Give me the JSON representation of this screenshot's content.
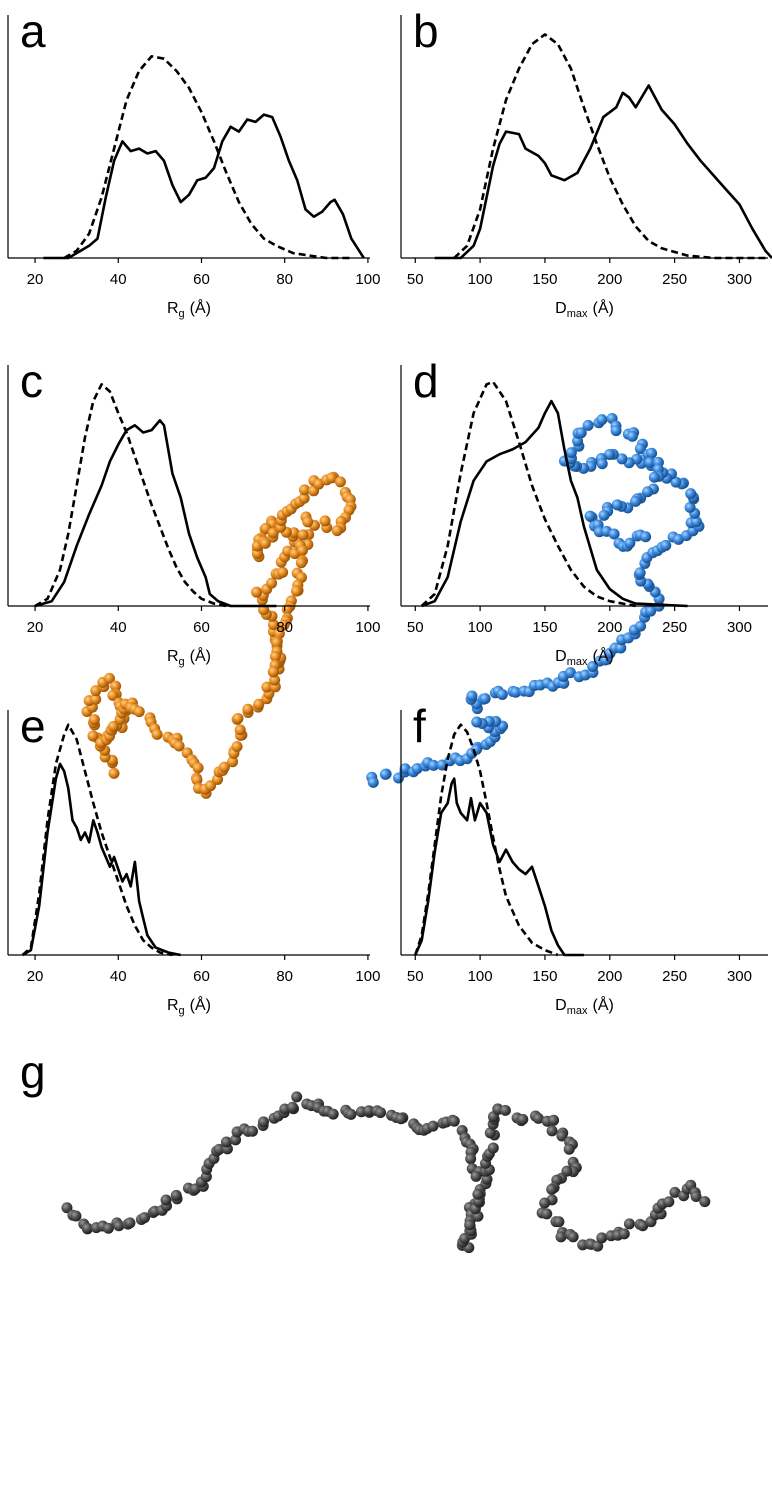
{
  "chart_data": [
    {
      "type": "line",
      "panel": "a",
      "xlabel_symbol": "R",
      "xlabel_subscript": "g",
      "xlabel_unit": "(Å)",
      "xlim": [
        13.5,
        100.5
      ],
      "xticks": [
        20,
        40,
        60,
        80,
        100
      ],
      "ylim": [
        0,
        100
      ],
      "series": [
        {
          "line_style": "solid",
          "color": "#000000",
          "x": [
            22,
            28,
            30,
            33,
            35,
            37,
            39,
            41,
            43,
            45,
            47,
            49,
            51,
            53,
            55,
            57,
            59,
            61,
            63,
            65,
            67,
            69,
            71,
            73,
            75,
            77,
            79,
            81,
            83,
            85,
            87,
            89,
            91,
            92,
            94,
            96,
            99
          ],
          "values": [
            0,
            0,
            2,
            5,
            8,
            25,
            40,
            48,
            44,
            45,
            43,
            44,
            40,
            30,
            23,
            26,
            32,
            33,
            37,
            48,
            54,
            52,
            57,
            56,
            59,
            58,
            50,
            40,
            32,
            20,
            17,
            19,
            23,
            24,
            18,
            8,
            0
          ]
        },
        {
          "line_style": "dashed",
          "color": "#000000",
          "x": [
            27,
            30,
            33,
            36,
            39,
            42,
            45,
            48,
            51,
            54,
            57,
            60,
            63,
            66,
            69,
            72,
            75,
            78,
            82,
            86,
            90,
            96
          ],
          "values": [
            0,
            3,
            10,
            25,
            45,
            65,
            77,
            83,
            82,
            77,
            70,
            60,
            48,
            35,
            23,
            14,
            8,
            5,
            2,
            1,
            0,
            0
          ]
        }
      ]
    },
    {
      "type": "line",
      "panel": "b",
      "xlabel_symbol": "D",
      "xlabel_subscript": "max",
      "xlabel_unit": "(Å)",
      "xlim": [
        39,
        322
      ],
      "xticks": [
        50,
        100,
        150,
        200,
        250,
        300
      ],
      "ylim": [
        0,
        100
      ],
      "series": [
        {
          "line_style": "solid",
          "color": "#000000",
          "x": [
            65,
            85,
            95,
            100,
            105,
            110,
            115,
            120,
            130,
            135,
            145,
            150,
            155,
            165,
            175,
            185,
            195,
            205,
            210,
            215,
            220,
            230,
            240,
            250,
            260,
            270,
            280,
            290,
            300,
            310,
            320,
            325
          ],
          "values": [
            0,
            0,
            5,
            12,
            25,
            38,
            47,
            52,
            51,
            45,
            42,
            39,
            34,
            32,
            35,
            45,
            58,
            62,
            68,
            66,
            62,
            71,
            61,
            55,
            47,
            40,
            34,
            28,
            22,
            12,
            3,
            0
          ]
        },
        {
          "line_style": "dashed",
          "color": "#000000",
          "x": [
            80,
            90,
            100,
            110,
            120,
            130,
            140,
            150,
            160,
            170,
            180,
            190,
            200,
            210,
            220,
            230,
            240,
            260,
            280,
            320
          ],
          "values": [
            0,
            5,
            20,
            45,
            65,
            78,
            88,
            92,
            88,
            78,
            62,
            47,
            33,
            22,
            13,
            7,
            4,
            1,
            0,
            0
          ]
        }
      ]
    },
    {
      "type": "line",
      "panel": "c",
      "xlabel_symbol": "R",
      "xlabel_subscript": "g",
      "xlabel_unit": "(Å)",
      "xlim": [
        13.5,
        100.5
      ],
      "xticks": [
        20,
        40,
        60,
        80,
        100
      ],
      "ylim": [
        0,
        100
      ],
      "series": [
        {
          "line_style": "solid",
          "color": "#000000",
          "x": [
            20,
            24,
            27,
            30,
            33,
            36,
            38,
            40,
            41,
            42,
            44,
            46,
            48,
            50,
            51,
            53,
            55,
            57,
            59,
            61,
            62,
            64,
            67,
            78
          ],
          "values": [
            0,
            2,
            10,
            25,
            38,
            50,
            60,
            67,
            70,
            73,
            75,
            72,
            73,
            77,
            75,
            55,
            45,
            30,
            20,
            12,
            5,
            2,
            0,
            0
          ]
        },
        {
          "line_style": "dashed",
          "color": "#000000",
          "x": [
            20,
            23,
            26,
            28,
            30,
            32,
            34,
            36,
            38,
            40,
            42,
            44,
            46,
            48,
            50,
            52,
            54,
            56,
            58,
            60,
            63,
            66
          ],
          "values": [
            0,
            3,
            15,
            30,
            50,
            70,
            85,
            92,
            89,
            80,
            72,
            62,
            52,
            42,
            33,
            24,
            16,
            10,
            6,
            3,
            1,
            0
          ]
        }
      ]
    },
    {
      "type": "line",
      "panel": "d",
      "xlabel_symbol": "D",
      "xlabel_subscript": "max",
      "xlabel_unit": "(Å)",
      "xlim": [
        39,
        322
      ],
      "xticks": [
        50,
        100,
        150,
        200,
        250,
        300
      ],
      "ylim": [
        0,
        100
      ],
      "series": [
        {
          "line_style": "solid",
          "color": "#000000",
          "x": [
            55,
            65,
            75,
            85,
            95,
            105,
            115,
            125,
            135,
            145,
            150,
            155,
            160,
            165,
            170,
            175,
            180,
            190,
            200,
            210,
            220,
            260
          ],
          "values": [
            0,
            2,
            12,
            35,
            52,
            60,
            63,
            65,
            68,
            74,
            80,
            85,
            80,
            65,
            52,
            45,
            33,
            15,
            7,
            3,
            1,
            0
          ]
        },
        {
          "line_style": "dashed",
          "color": "#000000",
          "x": [
            55,
            65,
            75,
            85,
            95,
            105,
            110,
            120,
            130,
            140,
            150,
            160,
            170,
            180,
            190,
            200,
            220
          ],
          "values": [
            0,
            5,
            25,
            55,
            80,
            92,
            93,
            85,
            68,
            50,
            36,
            25,
            15,
            8,
            4,
            2,
            0
          ]
        }
      ]
    },
    {
      "type": "line",
      "panel": "e",
      "xlabel_symbol": "R",
      "xlabel_subscript": "g",
      "xlabel_unit": "(Å)",
      "xlim": [
        13.5,
        100.5
      ],
      "xticks": [
        20,
        40,
        60,
        80,
        100
      ],
      "ylim": [
        0,
        100
      ],
      "series": [
        {
          "line_style": "solid",
          "color": "#000000",
          "x": [
            17,
            19,
            21,
            23,
            25,
            26,
            27,
            28,
            29,
            30,
            31,
            32,
            33,
            34,
            35,
            36,
            37,
            38,
            39,
            40,
            41,
            42,
            43,
            44,
            45,
            46,
            47,
            49,
            52,
            55
          ],
          "values": [
            0,
            2,
            20,
            50,
            72,
            78,
            75,
            68,
            55,
            52,
            47,
            50,
            46,
            55,
            50,
            44,
            40,
            36,
            40,
            35,
            30,
            33,
            28,
            38,
            22,
            15,
            8,
            3,
            1,
            0
          ]
        },
        {
          "line_style": "dashed",
          "color": "#000000",
          "x": [
            17,
            19,
            21,
            23,
            25,
            27,
            28,
            30,
            32,
            34,
            36,
            38,
            40,
            42,
            44,
            46,
            48,
            50,
            53
          ],
          "values": [
            0,
            3,
            25,
            55,
            78,
            90,
            94,
            88,
            75,
            62,
            50,
            40,
            30,
            20,
            12,
            6,
            3,
            1,
            0
          ]
        }
      ]
    },
    {
      "type": "line",
      "panel": "f",
      "xlabel_symbol": "D",
      "xlabel_subscript": "max",
      "xlabel_unit": "(Å)",
      "xlim": [
        39,
        322
      ],
      "xticks": [
        50,
        100,
        150,
        200,
        250,
        300
      ],
      "ylim": [
        0,
        100
      ],
      "series": [
        {
          "line_style": "solid",
          "color": "#000000",
          "x": [
            50,
            55,
            60,
            65,
            70,
            75,
            78,
            80,
            82,
            85,
            90,
            93,
            96,
            100,
            105,
            110,
            115,
            120,
            125,
            130,
            135,
            140,
            145,
            150,
            155,
            160,
            165,
            180
          ],
          "values": [
            0,
            6,
            22,
            42,
            58,
            62,
            70,
            72,
            62,
            58,
            55,
            64,
            55,
            62,
            58,
            45,
            38,
            43,
            38,
            35,
            33,
            36,
            28,
            20,
            10,
            4,
            0,
            0
          ]
        },
        {
          "line_style": "dashed",
          "color": "#000000",
          "x": [
            50,
            55,
            60,
            65,
            70,
            75,
            80,
            85,
            90,
            95,
            100,
            105,
            110,
            115,
            120,
            130,
            140,
            150,
            160
          ],
          "values": [
            0,
            8,
            25,
            45,
            65,
            80,
            90,
            94,
            91,
            84,
            75,
            62,
            48,
            35,
            24,
            12,
            5,
            2,
            0
          ]
        }
      ]
    }
  ],
  "structure_panel": {
    "panel": "g"
  }
}
